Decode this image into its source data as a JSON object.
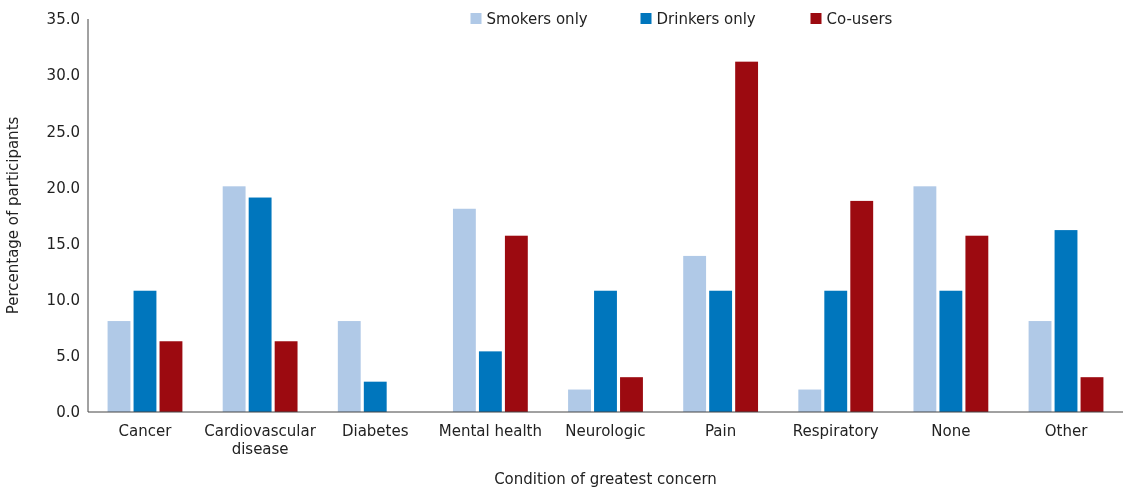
{
  "chart_data": {
    "type": "bar",
    "xlabel": "Condition of greatest concern",
    "ylabel": "Percentage of participants",
    "categories": [
      "Cancer",
      "Cardiovascular disease",
      "Diabetes",
      "Mental health",
      "Neurologic",
      "Pain",
      "Respiratory",
      "None",
      "Other"
    ],
    "series": [
      {
        "name": "Smokers only",
        "color": "#b0c9e7",
        "values": [
          8.1,
          20.1,
          8.1,
          18.1,
          2.0,
          13.9,
          2.0,
          20.1,
          8.1
        ]
      },
      {
        "name": "Drinkers only",
        "color": "#0076bd",
        "values": [
          10.8,
          19.1,
          2.7,
          5.4,
          10.8,
          10.8,
          10.8,
          10.8,
          16.2
        ]
      },
      {
        "name": "Co-users",
        "color": "#9c0a10",
        "values": [
          6.3,
          6.3,
          0,
          15.7,
          3.1,
          31.2,
          18.8,
          15.7,
          3.1
        ]
      }
    ],
    "ylim": [
      0,
      35
    ],
    "yticks": [
      {
        "value": 0,
        "label": "0.0"
      },
      {
        "value": 5,
        "label": "5.0"
      },
      {
        "value": 10,
        "label": "10.0"
      },
      {
        "value": 15,
        "label": "15.0"
      },
      {
        "value": 20,
        "label": "20.0"
      },
      {
        "value": 25,
        "label": "25.0"
      },
      {
        "value": 30,
        "label": "30.0"
      },
      {
        "value": 35,
        "label": "35.0"
      }
    ],
    "grid": false,
    "legend": "top"
  }
}
